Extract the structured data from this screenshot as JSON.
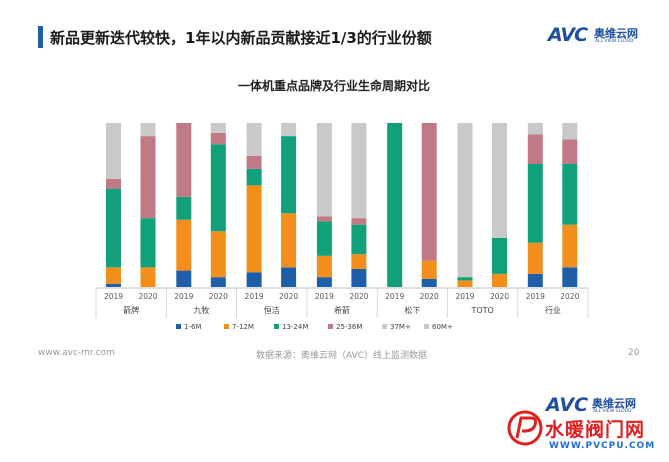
{
  "header": {
    "title": "新品更新迭代较快，1年以内新品贡献接近1/3的行业份额",
    "logo_text": "AVC",
    "logo_cn": "奥维云网",
    "logo_en": "ALL VIEW CLOUD"
  },
  "colors": {
    "accent": "#1f5fa9",
    "s1": "#1f5fa9",
    "s2": "#f28e1c",
    "s3": "#10a07a",
    "s4": "#c07a86",
    "s5": "#c9c9c9",
    "s6": "#c9c9c9"
  },
  "chart_data": {
    "type": "bar",
    "stacked": true,
    "percent": true,
    "title": "一体机重点品牌及行业生命周期对比",
    "years": [
      "2019",
      "2020"
    ],
    "groups": [
      "箭牌",
      "九牧",
      "恒洁",
      "希箭",
      "松下",
      "TOTO",
      "行业"
    ],
    "categories": [
      "箭牌 2019",
      "箭牌 2020",
      "九牧 2019",
      "九牧 2020",
      "恒洁 2019",
      "恒洁 2020",
      "希箭 2019",
      "希箭 2020",
      "松下 2019",
      "松下 2020",
      "TOTO 2019",
      "TOTO 2020",
      "行业 2019",
      "行业 2020"
    ],
    "series": [
      {
        "name": "1-6M",
        "values": [
          2,
          0,
          10,
          6,
          9,
          12,
          6,
          11,
          0,
          5,
          0,
          0,
          8,
          12
        ]
      },
      {
        "name": "7-12M",
        "values": [
          10,
          12,
          31,
          28,
          53,
          33,
          13,
          9,
          0,
          11,
          4,
          8,
          19,
          26
        ]
      },
      {
        "name": "13-24M",
        "values": [
          48,
          30,
          14,
          53,
          10,
          47,
          21,
          18,
          100,
          0,
          2,
          22,
          48,
          37
        ]
      },
      {
        "name": "25-36M",
        "values": [
          6,
          50,
          45,
          7,
          8,
          0,
          3,
          4,
          0,
          84,
          0,
          0,
          18,
          15
        ]
      },
      {
        "name": "37M+",
        "values": [
          34,
          4,
          0,
          6,
          20,
          8,
          57,
          58,
          0,
          0,
          94,
          70,
          7,
          10
        ]
      },
      {
        "name": "60M+",
        "values": [
          0,
          4,
          0,
          0,
          0,
          0,
          0,
          0,
          0,
          0,
          0,
          0,
          0,
          0
        ]
      }
    ],
    "ylim": [
      0,
      100
    ],
    "legend_position": "bottom"
  },
  "footer": {
    "url": "www.avc-mr.com",
    "source": "数据来源：奥维云网（AVC）线上监测数据",
    "page": "20"
  },
  "watermark": {
    "site": "水暖阀门网",
    "url": "WWW.PVCPU.COM"
  }
}
